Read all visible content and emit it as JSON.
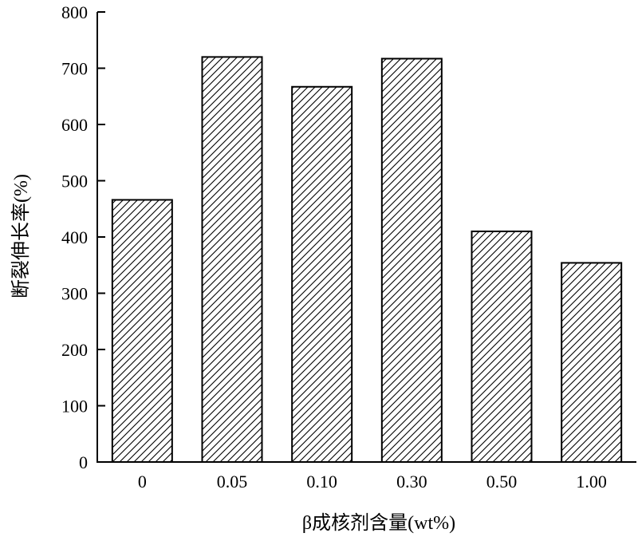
{
  "chart_data": {
    "type": "bar",
    "categories": [
      "0",
      "0.05",
      "0.10",
      "0.30",
      "0.50",
      "1.00"
    ],
    "values": [
      466,
      720,
      667,
      717,
      410,
      354
    ],
    "xlabel": "β成核剂含量(wt%)",
    "ylabel": "断裂伸长率(%)",
    "ylim": [
      0,
      800
    ],
    "yticks": [
      "0",
      "100",
      "200",
      "300",
      "400",
      "500",
      "600",
      "700",
      "800"
    ],
    "grid": false,
    "legend": "none",
    "bar_fill": "diagonal-hatch",
    "colors": {
      "bar_stroke": "#000000",
      "hatch": "#000000",
      "background": "#ffffff"
    }
  }
}
